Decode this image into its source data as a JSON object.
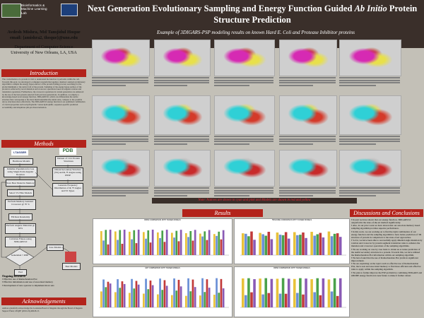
{
  "header": {
    "logo_text_1": "Bioinformatics &",
    "logo_text_2": "Machine Learning",
    "logo_text_3": "Lab",
    "title_line1": "Next Generation Evolutionary Sampling and Energy Function Guided",
    "title_em": "Ab Initio",
    "title_tail": "Protein",
    "title_line2": "Structure Prediction"
  },
  "authors": {
    "names": "Avdesh Mishra, Md Tamjidul Hoque",
    "email": "email: {amishra2, thoque}@uno.edu",
    "dept": "Department of Computer Science",
    "univ": "University of New Orleans, LA, USA"
  },
  "sections": {
    "intro": "Introduction",
    "methods": "Methods",
    "ack": "Acknowledgements",
    "results": "Results",
    "discussion": "Discussions and Conclusions",
    "examples": "Example of 3DIGARS-PSP modeling results on known Hard E. Coli and Protease Inhibitor proteins"
  },
  "intro_text": "The conformation of a protein is vital to understand the function it performs within the cell. Towards this goal, we developed a computer program that applies a memory assisted evolutionary algorithm to sample the energy hyper-surface of the protein folding process, searching for the global minimum or the native fold of the protein. Sampling of the energy hyper-surface of the protein is achieved by novel mutation and crossover operations based on angular rotation and translation operations. Furthermore, the crossover operations in current generation are enhanced by the use of the best parents selected from previous generations. In addition, we employ a knowledge-based novel energy function, 3DIGARS3.0, which can differentiate the native structure that corresponds to the most thermodynamically stable state, compare to the possible decoy structures more effectively. The 3DIGARS3.0 energy function is an optimized combination of crucial properties such as hydrophobic versus hydrophilic, sequence-specific predicted accessibility and ubiquitous phi-psi characterization.",
  "flow": {
    "logo_a": "I-TASSER",
    "logo_b": "PDB",
    "b1": "Backbone Models",
    "b2": "Dataset of 1112 Protein Structures",
    "b3": "Initialize Population for GA using Single Point Angular Rotation",
    "b4": "Obtain Secondary Structure (SS) and Φ, Ψ Angles using DSSP",
    "b5": "Save Best Model in Memory",
    "b6": "Generate Frequency Distribution of Φ, Ψ Angles and SS Types",
    "b7": "Select 5% Elite Models",
    "b8": "Perform Memory Assisted Crossover @ 70 %",
    "b9": "Fill Rest Randomly",
    "b10": "Perform Angular Mutation @ 60%",
    "b11": "Calculate Fitness using 3DIGARS3.0",
    "b12": "Generation > 2000",
    "b13": "Save Models",
    "b14": "End",
    "b15": "Best Models"
  },
  "ongoing": {
    "title": "Ongoing Research",
    "items": [
      "Effective use of Ramachandran Plot",
      "Effective initialization and use of associated memory",
      "Development of new operator to implement move sets"
    ]
  },
  "ack_text": "Authors gratefully acknowledge the Louisiana Board of Regents through the Board of Regents Support Fund, LEQSF (2016-19)-RD-B-13.",
  "note": "Note: Natives are shown in cyan and pink and Models are shown in red and yellow",
  "charts": [
    {
      "title": "RMSD COMPARISON WITH TASSER MODELS"
    },
    {
      "title": "TMSCORE COMPARISON WITH TASSER MODELS"
    },
    {
      "title": "GDT COMPARISON WITH TASSER MODELS"
    },
    {
      "title": "RMSD COMPARISON WITH TASSER MODELS"
    }
  ],
  "discussion": [
    "In past we have shown that our energy function, 3DIGARS3.0 outperforms the state-of-the-art method significantly.",
    "Also, in our prior work we have shown that our associate memory based sampling algorithm provides superior performance.",
    "In this work, we are working on to find the right combination of our energy function and the sampling algorithm to have better prediction of 3D structure of protein in comparison to the state-of-art approaches.",
    "So far, we have been able to successfully apply dihedral angle mutation by rotation and crossover by protein segment translation rules to enhance the mutation and crossover operations of the sampling algorithms.",
    "We are working on case by case basis to obtain an accurate prediction of the useful secondary structure in a protein. Towards this, we have utilized the Ramachandran Plot information within our sampling algorithm.",
    "We have found that the use of Ramachandran Plot yields in significant improvement.",
    "We are exploiting on the topics such as effective use of Ramachandran Plot, move sets and associated memory to find more efficient and effective rules to apply within the sampling algorithm.",
    "We plan to further improve the PSP problem by combining 3DIGARS and sMODE energy function in near future to make it further robust."
  ],
  "colors": {
    "header_bg": "#3a2f2a",
    "accent_red": "#b3231b",
    "poster_bg": "#c3c0b7"
  }
}
